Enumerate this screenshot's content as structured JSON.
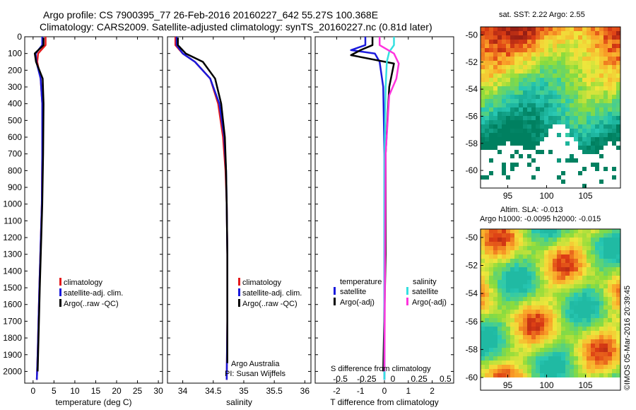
{
  "header": {
    "line1": "Argo profile: CS 7900395_77 26-Feb-2016 20160227_642 55.27S 100.368E",
    "line2": "Climatology: CARS2009. Satellite-adjusted climatology: synTS_20160227.nc (0.81d later)"
  },
  "map_top": {
    "title": "sat. SST: 2.22 Argo: 2.55"
  },
  "map_bottom": {
    "title1": "Altim. SLA: -0.013",
    "title2": "Argo h1000: -0.0095 h2000: -0.015",
    "credit": "©IMOS 05-Mar-2016 20:39:45"
  },
  "colors": {
    "climatology": "#e41a1c",
    "satellite_adj": "#1a1adc",
    "argo": "#000000",
    "salinity_satellite": "#33e0e0",
    "salinity_argo": "#ff33dd"
  },
  "legends": {
    "temp": [
      "climatology",
      "satellite-adj. clim.",
      "Argo(..raw -QC)"
    ],
    "sal": [
      "climatology",
      "satellite-adj. clim.",
      "Argo(..raw -QC)"
    ],
    "diff_temp_title": "temperature",
    "diff_sal_title": "salinity",
    "diff_temp": [
      "satellite",
      "Argo(-adj)"
    ],
    "diff_sal": [
      "satellite",
      "Argo(-adj)"
    ]
  },
  "annotations": {
    "sal_line1": "Argo Australia",
    "sal_line2": "PI: Susan Wijffels",
    "diff_top_axis_label": "S difference from climatology"
  },
  "chart_data": [
    {
      "type": "line",
      "xlabel": "temperature (deg C)",
      "xlim": [
        -2,
        31
      ],
      "ylim": [
        2070,
        0
      ],
      "xticks": [
        0,
        5,
        10,
        15,
        20,
        25,
        30
      ],
      "yticks": [
        0,
        100,
        200,
        300,
        400,
        500,
        600,
        700,
        800,
        900,
        1000,
        1100,
        1200,
        1300,
        1400,
        1500,
        1600,
        1700,
        1800,
        1900,
        2000
      ],
      "series": [
        {
          "name": "climatology",
          "x": [
            3.0,
            3.0,
            1.2,
            1.0,
            1.8,
            2.2,
            2.2,
            2.1,
            1.5,
            1.1,
            0.9
          ],
          "y": [
            0,
            50,
            100,
            150,
            250,
            400,
            700,
            1000,
            1500,
            1900,
            2050
          ]
        },
        {
          "name": "satellite-adj. clim.",
          "x": [
            2.2,
            2.2,
            0.6,
            0.8,
            1.8,
            2.2,
            2.2,
            2.1,
            1.5,
            1.1,
            0.9
          ],
          "y": [
            0,
            50,
            100,
            150,
            250,
            400,
            700,
            1000,
            1500,
            1900,
            2050
          ]
        },
        {
          "name": "Argo(..raw -QC)",
          "x": [
            2.5,
            2.5,
            0.4,
            0.7,
            2.3,
            2.5,
            2.4,
            2.2,
            1.6,
            1.1
          ],
          "y": [
            5,
            50,
            100,
            150,
            250,
            400,
            700,
            1000,
            1500,
            2000
          ]
        }
      ]
    },
    {
      "type": "line",
      "xlabel": "salinity",
      "xlim": [
        33.75,
        36.1
      ],
      "ylim": [
        2070,
        0
      ],
      "xticks": [
        34,
        34.5,
        35,
        35.5,
        36
      ],
      "series": [
        {
          "name": "climatology",
          "x": [
            33.88,
            33.88,
            34.0,
            34.2,
            34.45,
            34.58,
            34.66,
            34.7,
            34.72,
            34.73,
            34.73,
            34.72
          ],
          "y": [
            0,
            50,
            100,
            150,
            250,
            400,
            600,
            800,
            1000,
            1300,
            1700,
            2050
          ]
        },
        {
          "name": "satellite-adj. clim.",
          "x": [
            33.9,
            33.9,
            34.0,
            34.2,
            34.45,
            34.6,
            34.68,
            34.71,
            34.72,
            34.73,
            34.73,
            34.72
          ],
          "y": [
            0,
            50,
            100,
            150,
            250,
            400,
            600,
            800,
            1000,
            1300,
            1700,
            2050
          ]
        },
        {
          "name": "Argo(..raw -QC)",
          "x": [
            33.92,
            33.92,
            34.05,
            34.33,
            34.53,
            34.63,
            34.69,
            34.71,
            34.72,
            34.73,
            34.73
          ],
          "y": [
            5,
            50,
            100,
            150,
            250,
            400,
            600,
            800,
            1000,
            1300,
            1950
          ]
        }
      ]
    },
    {
      "type": "line",
      "xlabel": "T difference from climatology",
      "xlim": [
        -2.9,
        2.9
      ],
      "ylim": [
        2070,
        0
      ],
      "xticks": [
        -2,
        -1,
        0,
        1,
        2
      ],
      "top_axis_ticks": [
        "-0.5",
        "-0.25",
        "0",
        "0.25",
        "0.5"
      ],
      "series": [
        {
          "name": "temperature satellite",
          "x": [
            -0.8,
            -0.8,
            -1.4,
            -0.4,
            -0.2,
            -0.05,
            0.0,
            0.0,
            0.0
          ],
          "y": [
            0,
            50,
            80,
            100,
            150,
            300,
            700,
            1300,
            2050
          ]
        },
        {
          "name": "temperature Argo(-adj)",
          "x": [
            -0.5,
            -0.5,
            -1.0,
            -1.4,
            0.4,
            0.2,
            0.05,
            0.05,
            -0.05
          ],
          "y": [
            0,
            50,
            80,
            110,
            160,
            300,
            700,
            1300,
            2000
          ]
        },
        {
          "name": "salinity satellite",
          "x": [
            0.4,
            0.4,
            0.2,
            0.1,
            0.05,
            0.0,
            0.0
          ],
          "y": [
            0,
            50,
            90,
            150,
            300,
            800,
            2050
          ]
        },
        {
          "name": "salinity Argo(-adj)",
          "x": [
            -0.2,
            -0.2,
            0.4,
            0.6,
            0.5,
            0.2,
            0.05,
            0.0
          ],
          "y": [
            0,
            50,
            100,
            160,
            250,
            350,
            700,
            2000
          ]
        }
      ]
    },
    {
      "type": "heatmap",
      "title": "sat. SST: 2.22 Argo: 2.55",
      "xticks": [
        95,
        100,
        105
      ],
      "yticks": [
        -50,
        -52,
        -54,
        -56,
        -58,
        -60
      ],
      "xlim": [
        91.5,
        109.5
      ],
      "ylim": [
        -61.3,
        -49.4
      ]
    },
    {
      "type": "heatmap",
      "title": "Altim. SLA: -0.013",
      "xticks": [
        95,
        100,
        105
      ],
      "yticks": [
        -50,
        -52,
        -54,
        -56,
        -58,
        -60
      ],
      "xlim": [
        91.5,
        109.5
      ],
      "ylim": [
        -60,
        -49.4
      ]
    }
  ]
}
